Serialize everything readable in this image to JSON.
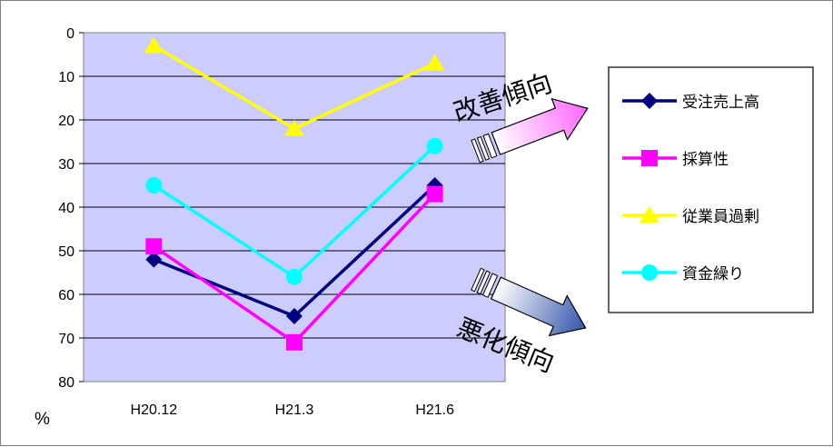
{
  "chart_data": {
    "type": "line",
    "categories": [
      "H20.12",
      "H21.3",
      "H21.6"
    ],
    "y_axis": {
      "min": 0,
      "max": 80,
      "step": 10,
      "reversed": true,
      "unit_label": "%",
      "ticks": [
        "0",
        "10",
        "20",
        "30",
        "40",
        "50",
        "60",
        "70",
        "80"
      ]
    },
    "grid": true,
    "plot_background": "#ccccff",
    "legend_position": "right",
    "series": [
      {
        "name": "受注売上高",
        "values": [
          52,
          65,
          35
        ],
        "color": "#000080",
        "marker": "diamond"
      },
      {
        "name": "採算性",
        "values": [
          49,
          71,
          37
        ],
        "color": "#ff00ff",
        "marker": "square"
      },
      {
        "name": "従業員過剰",
        "values": [
          3,
          22,
          7
        ],
        "color": "#ffff00",
        "marker": "triangle"
      },
      {
        "name": "資金繰り",
        "values": [
          35,
          56,
          26
        ],
        "color": "#00ffff",
        "marker": "circle"
      }
    ],
    "annotations": {
      "improving": "改善傾向",
      "worsening": "悪化傾向"
    }
  }
}
